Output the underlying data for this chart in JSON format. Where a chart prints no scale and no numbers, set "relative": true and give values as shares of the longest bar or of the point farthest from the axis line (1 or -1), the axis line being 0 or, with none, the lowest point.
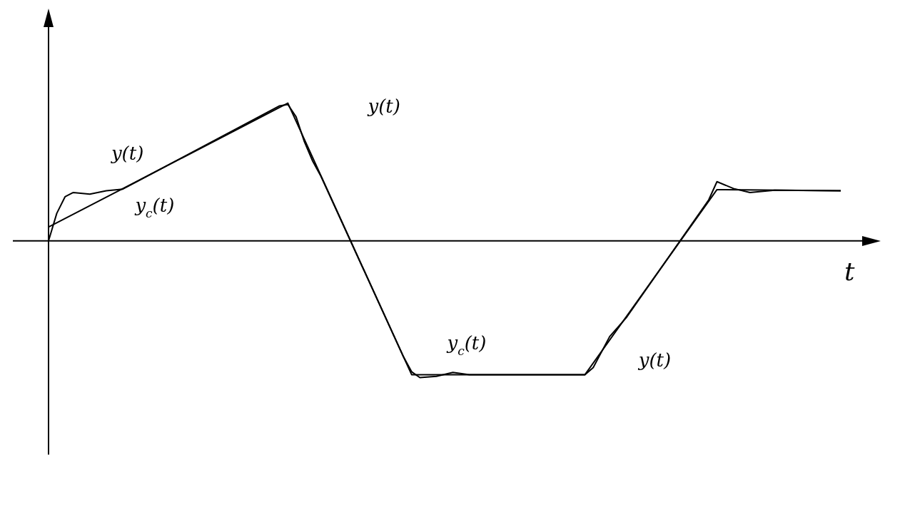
{
  "chart_data": {
    "type": "line",
    "relative": true,
    "xlabel": "t",
    "marker": "none",
    "line_style": "solid",
    "categories": [
      null,
      null,
      null,
      null,
      null,
      null,
      null,
      null,
      null,
      null,
      null,
      null,
      null,
      null,
      null,
      null,
      null,
      null,
      null,
      null,
      null,
      null,
      null,
      null,
      null,
      null,
      null,
      null,
      null,
      null,
      null,
      null,
      null,
      null,
      null,
      null,
      null,
      null,
      null,
      null,
      null,
      null,
      null,
      null,
      null,
      null,
      null,
      null,
      null,
      null,
      null,
      null,
      null,
      null,
      null,
      null,
      null,
      null,
      null,
      null,
      null,
      null,
      null,
      null,
      null,
      null,
      null,
      null,
      null,
      null,
      null,
      null,
      null,
      null,
      null,
      null,
      null,
      null,
      null,
      null,
      null,
      null,
      null,
      null,
      null,
      null,
      null,
      null,
      null,
      null,
      null,
      null,
      null,
      null,
      null,
      null,
      null
    ],
    "series": [
      {
        "name": "y$_{c}$(t)",
        "color": "#000000",
        "values": [
          0.1,
          null,
          null,
          null,
          null,
          null,
          null,
          null,
          null,
          null,
          null,
          null,
          null,
          null,
          null,
          null,
          null,
          null,
          null,
          null,
          null,
          null,
          null,
          null,
          null,
          null,
          null,
          null,
          null,
          1.0,
          null,
          null,
          null,
          null,
          null,
          null,
          null,
          null,
          null,
          null,
          null,
          null,
          null,
          null,
          -0.971,
          null,
          null,
          null,
          null,
          null,
          null,
          null,
          null,
          null,
          null,
          null,
          null,
          null,
          null,
          null,
          null,
          null,
          null,
          null,
          null,
          -0.971,
          null,
          null,
          null,
          null,
          null,
          null,
          null,
          null,
          null,
          null,
          null,
          null,
          null,
          null,
          null,
          0.372,
          null,
          null,
          null,
          null,
          null,
          null,
          null,
          null,
          null,
          null,
          null,
          null,
          null,
          null,
          0.364
        ]
      },
      {
        "name": "y(t)",
        "color": "#000000",
        "values": [
          0,
          0.2,
          0.32,
          0.351,
          null,
          0.339,
          null,
          0.364,
          null,
          0.376,
          null,
          null,
          null,
          null,
          null,
          null,
          null,
          null,
          null,
          null,
          null,
          null,
          null,
          null,
          null,
          null,
          null,
          null,
          0.98,
          0.99,
          0.9,
          0.72,
          0.58,
          0.47,
          null,
          null,
          null,
          null,
          null,
          null,
          null,
          null,
          null,
          -0.84,
          -0.95,
          -0.992,
          null,
          -0.983,
          null,
          -0.955,
          null,
          -0.971,
          null,
          null,
          null,
          null,
          null,
          null,
          null,
          null,
          null,
          null,
          null,
          null,
          null,
          -0.971,
          -0.92,
          null,
          -0.694,
          null,
          -0.558,
          null,
          null,
          null,
          null,
          null,
          null,
          null,
          null,
          null,
          0.298,
          0.43,
          null,
          0.38,
          null,
          0.351,
          null,
          null,
          0.368,
          null,
          null,
          null,
          null,
          null,
          null,
          null,
          0.364
        ]
      }
    ],
    "annotations": [
      "y$_{c}$(t)",
      "y(t)",
      "y(t)"
    ]
  }
}
